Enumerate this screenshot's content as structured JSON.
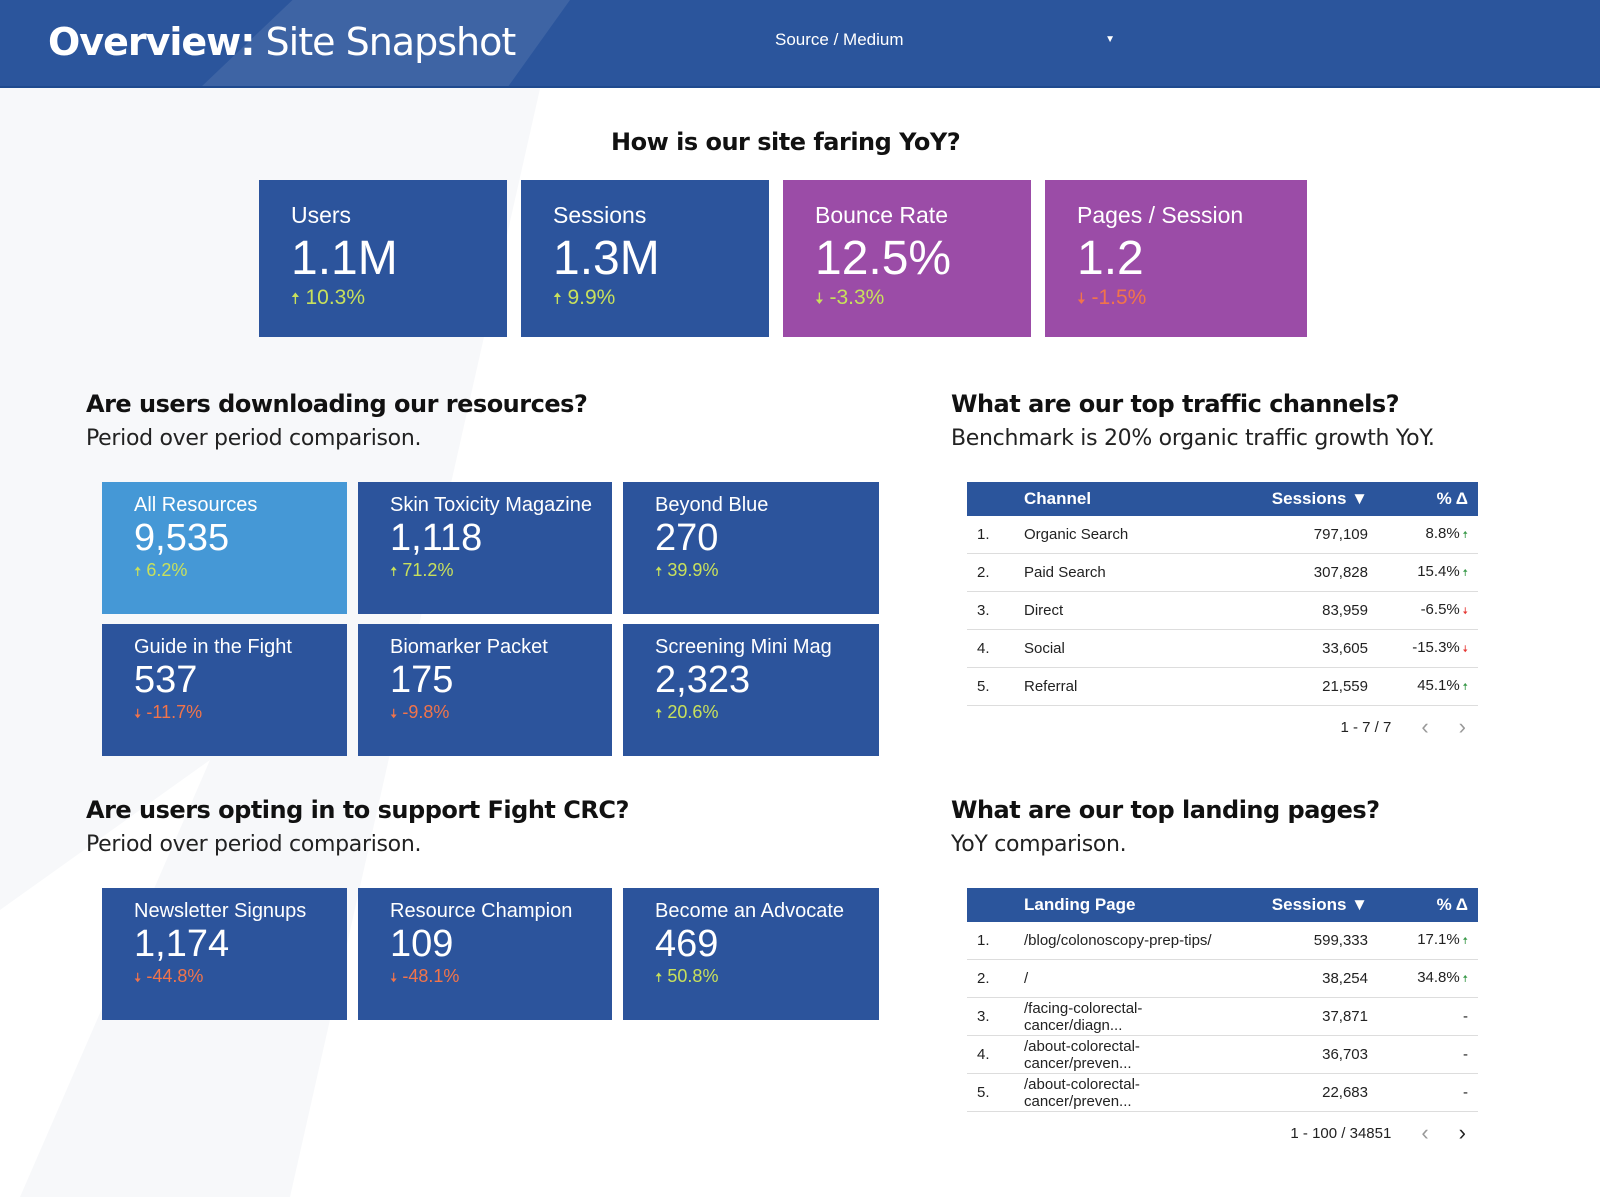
{
  "header": {
    "title_bold": "Overview:",
    "title_rest": " Site Snapshot",
    "filter_label": "Source / Medium"
  },
  "colors": {
    "header": "#2b559c",
    "tile_blue": "#2c549c",
    "tile_purple": "#9b4ca7",
    "tile_highlight": "#4598d6",
    "up": "#c8e05c",
    "down": "#f2744a"
  },
  "yoy": {
    "heading": "How is our site faring YoY?",
    "tiles": [
      {
        "label": "Users",
        "value": "1.1M",
        "change": "10.3%",
        "dir": "up"
      },
      {
        "label": "Sessions",
        "value": "1.3M",
        "change": "9.9%",
        "dir": "up"
      },
      {
        "label": "Bounce Rate",
        "value": "12.5%",
        "change": "-3.3%",
        "dir": "down-good"
      },
      {
        "label": "Pages / Session",
        "value": "1.2",
        "change": "-1.5%",
        "dir": "down"
      }
    ]
  },
  "resources": {
    "heading": "Are users downloading our resources?",
    "subheading": "Period over period comparison.",
    "tiles": [
      {
        "label": "All Resources",
        "value": "9,535",
        "change": "6.2%",
        "dir": "up"
      },
      {
        "label": "Skin Toxicity Magazine",
        "value": "1,118",
        "change": "71.2%",
        "dir": "up"
      },
      {
        "label": "Beyond Blue",
        "value": "270",
        "change": "39.9%",
        "dir": "up"
      },
      {
        "label": "Guide in the Fight",
        "value": "537",
        "change": "-11.7%",
        "dir": "down"
      },
      {
        "label": "Biomarker Packet",
        "value": "175",
        "change": "-9.8%",
        "dir": "down"
      },
      {
        "label": "Screening Mini Mag",
        "value": "2,323",
        "change": "20.6%",
        "dir": "up"
      }
    ]
  },
  "optin": {
    "heading": "Are users opting in to support Fight CRC?",
    "subheading": "Period over period comparison.",
    "tiles": [
      {
        "label": "Newsletter Signups",
        "value": "1,174",
        "change": "-44.8%",
        "dir": "down"
      },
      {
        "label": "Resource Champion",
        "value": "109",
        "change": "-48.1%",
        "dir": "down"
      },
      {
        "label": "Become an Advocate",
        "value": "469",
        "change": "50.8%",
        "dir": "up"
      }
    ]
  },
  "channels": {
    "heading": "What are our top traffic channels?",
    "subheading": "Benchmark is 20% organic traffic growth YoY.",
    "columns": [
      "Channel",
      "Sessions ▼",
      "% Δ"
    ],
    "rows": [
      {
        "n": "1.",
        "name": "Organic Search",
        "sessions": "797,109",
        "delta": "8.8%",
        "dir": "up"
      },
      {
        "n": "2.",
        "name": "Paid Search",
        "sessions": "307,828",
        "delta": "15.4%",
        "dir": "up"
      },
      {
        "n": "3.",
        "name": "Direct",
        "sessions": "83,959",
        "delta": "-6.5%",
        "dir": "down"
      },
      {
        "n": "4.",
        "name": "Social",
        "sessions": "33,605",
        "delta": "-15.3%",
        "dir": "down"
      },
      {
        "n": "5.",
        "name": "Referral",
        "sessions": "21,559",
        "delta": "45.1%",
        "dir": "up"
      }
    ],
    "pager": "1 - 7 / 7"
  },
  "landing": {
    "heading": "What are our top landing pages?",
    "subheading": "YoY comparison.",
    "columns": [
      "Landing Page",
      "Sessions ▼",
      "% Δ"
    ],
    "rows": [
      {
        "n": "1.",
        "name": "/blog/colonoscopy-prep-tips/",
        "sessions": "599,333",
        "delta": "17.1%",
        "dir": "up"
      },
      {
        "n": "2.",
        "name": "/",
        "sessions": "38,254",
        "delta": "34.8%",
        "dir": "up"
      },
      {
        "n": "3.",
        "name": "/facing-colorectal-cancer/diagn...",
        "sessions": "37,871",
        "delta": "-",
        "dir": "none"
      },
      {
        "n": "4.",
        "name": "/about-colorectal-cancer/preven...",
        "sessions": "36,703",
        "delta": "-",
        "dir": "none"
      },
      {
        "n": "5.",
        "name": "/about-colorectal-cancer/preven...",
        "sessions": "22,683",
        "delta": "-",
        "dir": "none"
      }
    ],
    "pager": "1 - 100 / 34851"
  }
}
